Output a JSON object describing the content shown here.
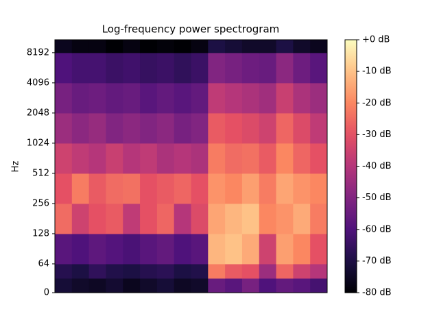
{
  "chart_data": {
    "type": "spectrogram",
    "title": "Log-frequency power spectrogram",
    "y_label": "Hz",
    "yscale": "symlog",
    "linthresh": 64,
    "ylim": [
      0,
      11025
    ],
    "yticks": [
      0,
      64,
      128,
      256,
      512,
      1024,
      2048,
      4096,
      8192
    ],
    "y_edges": [
      0,
      32,
      64,
      128,
      256,
      512,
      1024,
      2048,
      4096,
      8192,
      11025
    ],
    "colormap": "magma",
    "clim": [
      -80,
      0
    ],
    "cticks": [
      {
        "value": 0,
        "label": "+0 dB"
      },
      {
        "value": -10,
        "label": "-10 dB"
      },
      {
        "value": -20,
        "label": "-20 dB"
      },
      {
        "value": -30,
        "label": "-30 dB"
      },
      {
        "value": -40,
        "label": "-40 dB"
      },
      {
        "value": -50,
        "label": "-50 dB"
      },
      {
        "value": -60,
        "label": "-60 dB"
      },
      {
        "value": -70,
        "label": "-70 dB"
      },
      {
        "value": -80,
        "label": "-80 dB"
      }
    ],
    "values": [
      [
        -72,
        -74,
        -75,
        -73,
        -76,
        -74,
        -72,
        -75,
        -74,
        -55,
        -58,
        -52,
        -60,
        -56,
        -58,
        -62
      ],
      [
        -68,
        -70,
        -66,
        -69,
        -70,
        -68,
        -67,
        -70,
        -69,
        -22,
        -28,
        -30,
        -45,
        -26,
        -35,
        -40
      ],
      [
        -58,
        -60,
        -57,
        -59,
        -61,
        -58,
        -56,
        -60,
        -58,
        -12,
        -10,
        -14,
        -35,
        -16,
        -20,
        -30
      ],
      [
        -25,
        -35,
        -30,
        -28,
        -38,
        -30,
        -26,
        -40,
        -32,
        -15,
        -12,
        -10,
        -20,
        -18,
        -14,
        -22
      ],
      [
        -30,
        -22,
        -28,
        -25,
        -24,
        -30,
        -28,
        -26,
        -30,
        -18,
        -20,
        -16,
        -22,
        -15,
        -18,
        -20
      ],
      [
        -35,
        -38,
        -40,
        -36,
        -40,
        -38,
        -42,
        -40,
        -42,
        -22,
        -25,
        -24,
        -28,
        -20,
        -26,
        -30
      ],
      [
        -45,
        -48,
        -46,
        -50,
        -48,
        -50,
        -48,
        -52,
        -50,
        -28,
        -30,
        -32,
        -35,
        -26,
        -32,
        -38
      ],
      [
        -52,
        -55,
        -54,
        -56,
        -55,
        -58,
        -56,
        -58,
        -56,
        -38,
        -40,
        -42,
        -44,
        -36,
        -42,
        -45
      ],
      [
        -60,
        -62,
        -62,
        -64,
        -63,
        -65,
        -64,
        -66,
        -64,
        -50,
        -52,
        -54,
        -55,
        -48,
        -54,
        -58
      ],
      [
        -76,
        -78,
        -78,
        -80,
        -78,
        -80,
        -79,
        -80,
        -78,
        -70,
        -72,
        -74,
        -74,
        -70,
        -74,
        -76
      ]
    ]
  }
}
